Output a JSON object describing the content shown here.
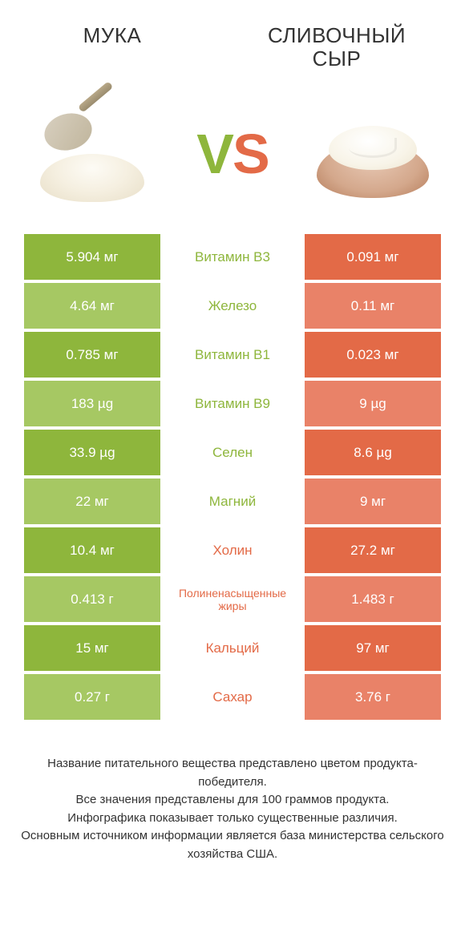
{
  "colors": {
    "left_product": "#8eb63c",
    "right_product": "#e36a47",
    "left_l1": "#8eb63c",
    "left_l2": "#a6c863",
    "right_l1": "#e36a47",
    "right_l2": "#e98268",
    "background": "#ffffff",
    "text": "#333333"
  },
  "typography": {
    "title_fontsize": 26,
    "vs_fontsize": 70,
    "value_fontsize": 17,
    "footnote_fontsize": 15
  },
  "header": {
    "left_title": "МУКА",
    "right_title": "СЛИВОЧНЫЙ СЫР",
    "vs_text": "VS"
  },
  "table": {
    "type": "comparison-table",
    "rows": [
      {
        "nutrient": "Витамин B3",
        "left": "5.904 мг",
        "right": "0.091 мг",
        "winner": "left"
      },
      {
        "nutrient": "Железо",
        "left": "4.64 мг",
        "right": "0.11 мг",
        "winner": "left"
      },
      {
        "nutrient": "Витамин B1",
        "left": "0.785 мг",
        "right": "0.023 мг",
        "winner": "left"
      },
      {
        "nutrient": "Витамин B9",
        "left": "183 µg",
        "right": "9 µg",
        "winner": "left"
      },
      {
        "nutrient": "Селен",
        "left": "33.9 µg",
        "right": "8.6 µg",
        "winner": "left"
      },
      {
        "nutrient": "Магний",
        "left": "22 мг",
        "right": "9 мг",
        "winner": "left"
      },
      {
        "nutrient": "Холин",
        "left": "10.4 мг",
        "right": "27.2 мг",
        "winner": "right"
      },
      {
        "nutrient": "Полиненасыщенные жиры",
        "left": "0.413 г",
        "right": "1.483 г",
        "winner": "right",
        "small": true
      },
      {
        "nutrient": "Кальций",
        "left": "15 мг",
        "right": "97 мг",
        "winner": "right"
      },
      {
        "nutrient": "Сахар",
        "left": "0.27 г",
        "right": "3.76 г",
        "winner": "right"
      }
    ]
  },
  "footnotes": [
    "Название питательного вещества представлено цветом продукта-победителя.",
    "Все значения представлены для 100 граммов продукта.",
    "Инфографика показывает только существенные различия.",
    "Основным источником информации является база министерства сельского хозяйства США."
  ]
}
